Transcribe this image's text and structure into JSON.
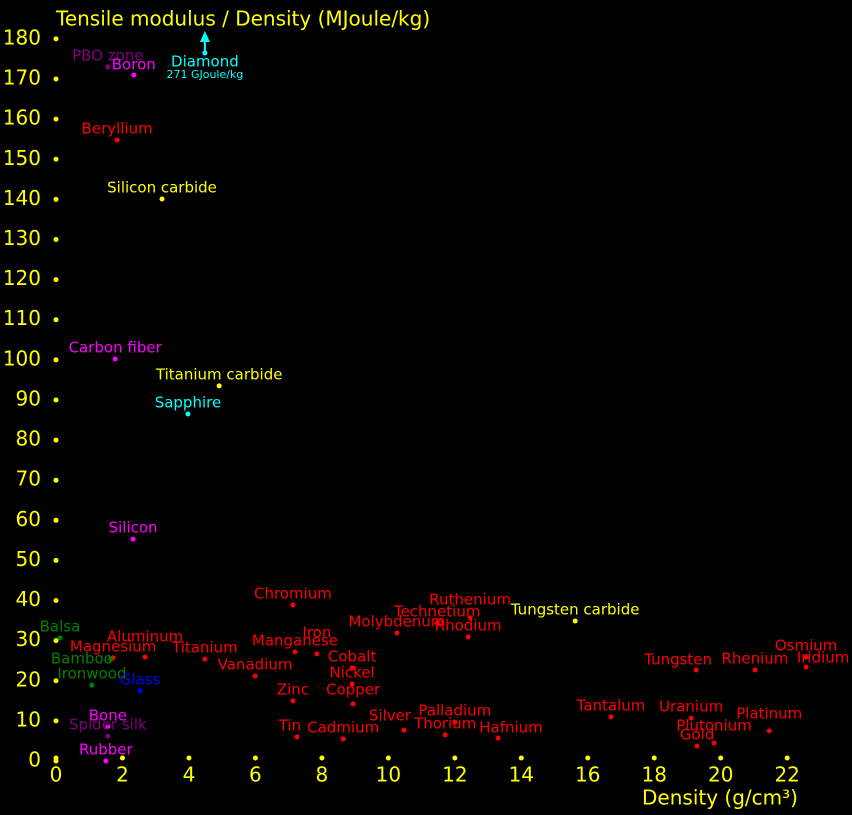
{
  "chart_data": {
    "type": "scatter",
    "title": "Tensile modulus / Density (MJoule/kg)",
    "x_label": "Density (g/cm³)",
    "xlim": [
      0,
      23.95
    ],
    "ylim": [
      0,
      189.7
    ],
    "xticks": [
      0,
      2,
      4,
      6,
      8,
      10,
      12,
      14,
      16,
      18,
      20,
      22
    ],
    "yticks": [
      0,
      10,
      20,
      30,
      40,
      50,
      60,
      70,
      80,
      90,
      100,
      110,
      120,
      130,
      140,
      150,
      160,
      170,
      180
    ],
    "tick_color": "#ffff00",
    "annotation": "271 GJoule/kg",
    "points": [
      {
        "name": "PBO zone",
        "x": 1.56,
        "y": 173,
        "color": "#800080"
      },
      {
        "name": "Boron",
        "x": 2.34,
        "y": 171,
        "color": "#ff00ff"
      },
      {
        "name": "Diamond",
        "x": 4.48,
        "y": 176.5,
        "color": "#00ffff"
      },
      {
        "name": "Beryllium",
        "x": 1.84,
        "y": 154.8,
        "color": "#ff0000"
      },
      {
        "name": "Silicon carbide",
        "x": 3.19,
        "y": 140.1,
        "color": "#ffff00"
      },
      {
        "name": "Carbon fiber",
        "x": 1.78,
        "y": 100.2,
        "color": "#ff00ff"
      },
      {
        "name": "Titanium carbide",
        "x": 4.91,
        "y": 93.5,
        "color": "#ffff00"
      },
      {
        "name": "Sapphire",
        "x": 3.97,
        "y": 86.5,
        "color": "#00ffff"
      },
      {
        "name": "Silicon",
        "x": 2.32,
        "y": 55.3,
        "color": "#ff00ff"
      },
      {
        "name": "Chromium",
        "x": 7.13,
        "y": 38.9,
        "color": "#ff0000"
      },
      {
        "name": "Ruthenium",
        "x": 12.46,
        "y": 35.7,
        "color": "#ff0000"
      },
      {
        "name": "Technetium",
        "x": 11.47,
        "y": 34.4,
        "color": "#ff0000"
      },
      {
        "name": "Tungsten carbide",
        "x": 15.62,
        "y": 34.9,
        "color": "#ffff00"
      },
      {
        "name": "Molybdenum",
        "x": 10.26,
        "y": 31.9,
        "color": "#ff0000"
      },
      {
        "name": "Rhodium",
        "x": 12.4,
        "y": 30.9,
        "color": "#ff0000"
      },
      {
        "name": "Balsa",
        "x": 0.12,
        "y": 30.7,
        "color": "#008000"
      },
      {
        "name": "Aluminum",
        "x": 2.68,
        "y": 25.9,
        "color": "#ff0000"
      },
      {
        "name": "Magnesium",
        "x": 1.72,
        "y": 25.7,
        "color": "#ff0000"
      },
      {
        "name": "Bamboo",
        "x": 1.65,
        "y": 25.4,
        "color": "#008000"
      },
      {
        "name": "Ironwood",
        "x": 1.08,
        "y": 18.9,
        "color": "#008000"
      },
      {
        "name": "Glass",
        "x": 2.53,
        "y": 17.5,
        "color": "#0000ff"
      },
      {
        "name": "Titanium",
        "x": 4.48,
        "y": 25.4,
        "color": "#ff0000"
      },
      {
        "name": "Iron",
        "x": 7.85,
        "y": 26.7,
        "color": "#ff0000"
      },
      {
        "name": "Manganese",
        "x": 7.19,
        "y": 27.2,
        "color": "#ff0000"
      },
      {
        "name": "Vanadium",
        "x": 5.99,
        "y": 21.2,
        "color": "#ff0000"
      },
      {
        "name": "Cobalt",
        "x": 8.91,
        "y": 23.2,
        "color": "#ff0000"
      },
      {
        "name": "Nickel",
        "x": 8.91,
        "y": 19.2,
        "color": "#ff0000"
      },
      {
        "name": "Copper",
        "x": 8.94,
        "y": 14.2,
        "color": "#ff0000"
      },
      {
        "name": "Zinc",
        "x": 7.13,
        "y": 15.0,
        "color": "#ff0000"
      },
      {
        "name": "Tin",
        "x": 7.25,
        "y": 6.0,
        "color": "#ff0000"
      },
      {
        "name": "Cadmium",
        "x": 8.64,
        "y": 5.5,
        "color": "#ff0000"
      },
      {
        "name": "Silver",
        "x": 10.47,
        "y": 7.7,
        "color": "#ff0000"
      },
      {
        "name": "Palladium",
        "x": 12.0,
        "y": 9.7,
        "color": "#ff0000"
      },
      {
        "name": "Thorium",
        "x": 11.71,
        "y": 6.5,
        "color": "#ff0000"
      },
      {
        "name": "Hafnium",
        "x": 13.3,
        "y": 5.7,
        "color": "#ff0000"
      },
      {
        "name": "Tantalum",
        "x": 16.7,
        "y": 11.0,
        "color": "#ff0000"
      },
      {
        "name": "Uranium",
        "x": 19.11,
        "y": 10.7,
        "color": "#ff0000"
      },
      {
        "name": "Plutonium",
        "x": 19.8,
        "y": 4.5,
        "color": "#ff0000"
      },
      {
        "name": "Gold",
        "x": 19.29,
        "y": 3.7,
        "color": "#ff0000"
      },
      {
        "name": "Platinum",
        "x": 21.46,
        "y": 7.5,
        "color": "#ff0000"
      },
      {
        "name": "Tungsten",
        "x": 19.26,
        "y": 22.7,
        "color": "#ff0000"
      },
      {
        "name": "Rhenium",
        "x": 21.03,
        "y": 22.7,
        "color": "#ff0000"
      },
      {
        "name": "Osmium",
        "x": 22.57,
        "y": 25.9,
        "color": "#ff0000"
      },
      {
        "name": "Iridium",
        "x": 22.57,
        "y": 23.4,
        "color": "#ff0000"
      },
      {
        "name": "Bone",
        "x": 1.56,
        "y": 8.5,
        "color": "#ff00ff"
      },
      {
        "name": "Spider silk",
        "x": 1.56,
        "y": 6.2,
        "color": "#800080"
      },
      {
        "name": "Rubber",
        "x": 1.5,
        "y": 0,
        "color": "#ff00ff"
      }
    ]
  }
}
